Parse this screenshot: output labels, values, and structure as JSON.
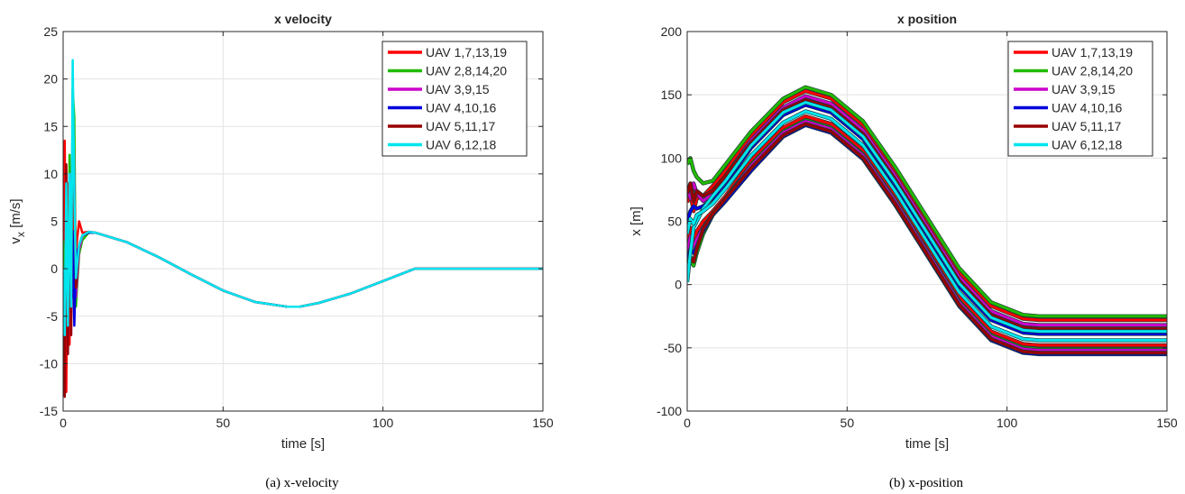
{
  "chart_data": [
    {
      "type": "line",
      "title": "x velocity",
      "xlabel": "time [s]",
      "ylabel": "v_x [m/s]",
      "xlim": [
        0,
        150
      ],
      "ylim": [
        -15,
        25
      ],
      "xticks": [
        0,
        50,
        100,
        150
      ],
      "yticks": [
        -15,
        -10,
        -5,
        0,
        5,
        10,
        15,
        20,
        25
      ],
      "grid": true,
      "legend_position": "top-right",
      "caption": "(a)  x-velocity",
      "series": [
        {
          "name": "UAV 1,7,13,19",
          "color": "#ff0000",
          "x": [
            0,
            0.5,
            1,
            1.5,
            2,
            2.5,
            3,
            3.5,
            4,
            5,
            6,
            8,
            10,
            20,
            30,
            40,
            50,
            60,
            70,
            74,
            80,
            90,
            100,
            110,
            120,
            130,
            140,
            150
          ],
          "y": [
            0,
            13.5,
            -13,
            9,
            -8,
            6,
            -3,
            8,
            2,
            5,
            3.8,
            3.9,
            3.8,
            2.8,
            1.2,
            -0.6,
            -2.3,
            -3.5,
            -4,
            -4,
            -3.6,
            -2.6,
            -1.3,
            0,
            0,
            0,
            0,
            0
          ]
        },
        {
          "name": "UAV 2,8,14,20",
          "color": "#22bb00",
          "x": [
            0,
            0.5,
            1,
            1.5,
            2,
            2.5,
            3,
            3.5,
            4,
            5,
            6,
            8,
            10,
            20,
            30,
            40,
            50,
            60,
            70,
            74,
            80,
            90,
            100,
            110,
            120,
            130,
            140,
            150
          ],
          "y": [
            3,
            -5,
            7,
            -8,
            12,
            -4,
            19,
            16,
            -4,
            1.5,
            3,
            3.8,
            3.8,
            2.8,
            1.2,
            -0.6,
            -2.3,
            -3.5,
            -4,
            -4,
            -3.6,
            -2.6,
            -1.3,
            0,
            0,
            0,
            0,
            0
          ]
        },
        {
          "name": "UAV 3,9,15",
          "color": "#cc00cc",
          "x": [
            0,
            0.5,
            1,
            1.5,
            2,
            2.5,
            3,
            3.5,
            4,
            5,
            6,
            8,
            10,
            20,
            30,
            40,
            50,
            60,
            70,
            74,
            80,
            90,
            100,
            110,
            120,
            130,
            140,
            150
          ],
          "y": [
            0,
            -12,
            8,
            -9,
            10,
            -7,
            18.5,
            10,
            -3,
            2,
            3.4,
            3.9,
            3.8,
            2.8,
            1.2,
            -0.6,
            -2.3,
            -3.5,
            -4,
            -4,
            -3.6,
            -2.6,
            -1.3,
            0,
            0,
            0,
            0,
            0
          ]
        },
        {
          "name": "UAV 4,10,16",
          "color": "#0000dd",
          "x": [
            0,
            0.5,
            1,
            1.5,
            2,
            2.5,
            3,
            3.5,
            4,
            5,
            6,
            8,
            10,
            20,
            30,
            40,
            50,
            60,
            70,
            74,
            80,
            90,
            100,
            110,
            120,
            130,
            140,
            150
          ],
          "y": [
            0,
            -4,
            5,
            -6,
            6,
            -5,
            4,
            -6,
            1,
            2.5,
            3.5,
            3.8,
            3.8,
            2.8,
            1.2,
            -0.6,
            -2.3,
            -3.5,
            -4,
            -4,
            -3.6,
            -2.6,
            -1.3,
            0,
            0,
            0,
            0,
            0
          ]
        },
        {
          "name": "UAV 5,11,17",
          "color": "#990000",
          "x": [
            0,
            0.5,
            1,
            1.5,
            2,
            2.5,
            3,
            3.5,
            4,
            5,
            6,
            8,
            10,
            20,
            30,
            40,
            50,
            60,
            70,
            74,
            80,
            90,
            100,
            110,
            120,
            130,
            140,
            150
          ],
          "y": [
            0,
            -13.5,
            11,
            -9,
            9,
            -7,
            17.5,
            8,
            -2,
            2.5,
            3.5,
            3.9,
            3.8,
            2.8,
            1.2,
            -0.6,
            -2.3,
            -3.5,
            -4,
            -4,
            -3.6,
            -2.6,
            -1.3,
            0,
            0,
            0,
            0,
            0
          ]
        },
        {
          "name": "UAV 6,12,18",
          "color": "#00e5ee",
          "x": [
            0,
            0.5,
            1,
            1.5,
            2,
            2.5,
            3,
            3.5,
            4,
            5,
            6,
            8,
            10,
            20,
            30,
            40,
            50,
            60,
            70,
            74,
            80,
            90,
            100,
            110,
            120,
            130,
            140,
            150
          ],
          "y": [
            0,
            -7,
            9,
            -6,
            10,
            -4,
            22,
            8,
            -1,
            2.5,
            3.5,
            3.9,
            3.8,
            2.8,
            1.2,
            -0.6,
            -2.3,
            -3.5,
            -4,
            -4,
            -3.6,
            -2.6,
            -1.3,
            0,
            0,
            0,
            0,
            0
          ]
        }
      ]
    },
    {
      "type": "line",
      "title": "x position",
      "xlabel": "time [s]",
      "ylabel": "x [m]",
      "xlim": [
        0,
        150
      ],
      "ylim": [
        -100,
        200
      ],
      "xticks": [
        0,
        50,
        100,
        150
      ],
      "yticks": [
        -100,
        -50,
        0,
        50,
        100,
        150,
        200
      ],
      "grid": true,
      "legend_position": "top-right",
      "caption": "(b)  x-position",
      "series": [
        {
          "name": "UAV 1,7,13,19",
          "color": "#ff0000",
          "x": [
            0,
            1,
            2,
            3,
            5,
            8,
            12,
            20,
            30,
            37,
            45,
            55,
            65,
            75,
            85,
            95,
            105,
            110,
            120,
            130,
            140,
            150
          ],
          "y": [
            65,
            72,
            58,
            68,
            70,
            78,
            90,
            118,
            144,
            153,
            147,
            126,
            90,
            50,
            10,
            -17,
            -27,
            -28,
            -28,
            -28,
            -28,
            -28
          ]
        },
        {
          "name": "UAV 1,7,13,19",
          "color": "#ff0000",
          "x": [
            0,
            1,
            2,
            3,
            5,
            8,
            12,
            20,
            30,
            37,
            45,
            55,
            65,
            75,
            85,
            95,
            105,
            110,
            120,
            130,
            140,
            150
          ],
          "y": [
            30,
            45,
            35,
            42,
            50,
            58,
            70,
            98,
            124,
            133,
            127,
            106,
            70,
            30,
            -10,
            -37,
            -47,
            -48,
            -48,
            -48,
            -48,
            -48
          ]
        },
        {
          "name": "UAV 2,8,14,20",
          "color": "#22bb00",
          "x": [
            0,
            1,
            2,
            3,
            5,
            8,
            12,
            20,
            30,
            37,
            45,
            55,
            65,
            75,
            85,
            95,
            105,
            110,
            120,
            130,
            140,
            150
          ],
          "y": [
            95,
            100,
            90,
            85,
            80,
            82,
            95,
            121,
            147,
            156,
            150,
            129,
            93,
            53,
            13,
            -14,
            -24,
            -25,
            -25,
            -25,
            -25,
            -25
          ]
        },
        {
          "name": "UAV 2,8,14,20",
          "color": "#22bb00",
          "x": [
            0,
            1,
            2,
            3,
            5,
            8,
            12,
            20,
            30,
            37,
            45,
            55,
            65,
            75,
            85,
            95,
            105,
            110,
            120,
            130,
            140,
            150
          ],
          "y": [
            10,
            20,
            15,
            25,
            40,
            55,
            68,
            95,
            121,
            130,
            124,
            103,
            67,
            27,
            -13,
            -40,
            -50,
            -51,
            -51,
            -51,
            -51,
            -51
          ]
        },
        {
          "name": "UAV 3,9,15",
          "color": "#cc00cc",
          "x": [
            0,
            1,
            2,
            3,
            5,
            8,
            12,
            20,
            30,
            37,
            45,
            55,
            65,
            75,
            85,
            95,
            105,
            110,
            120,
            130,
            140,
            150
          ],
          "y": [
            78,
            68,
            80,
            72,
            66,
            72,
            86,
            114,
            140,
            149,
            143,
            122,
            86,
            46,
            6,
            -21,
            -31,
            -32,
            -32,
            -32,
            -32,
            -32
          ]
        },
        {
          "name": "UAV 3,9,15",
          "color": "#cc00cc",
          "x": [
            0,
            1,
            2,
            3,
            5,
            8,
            12,
            20,
            30,
            37,
            45,
            55,
            65,
            75,
            85,
            95,
            105,
            110,
            120,
            130,
            140,
            150
          ],
          "y": [
            25,
            38,
            30,
            36,
            45,
            56,
            68,
            94,
            120,
            129,
            123,
            102,
            66,
            26,
            -14,
            -41,
            -51,
            -52,
            -52,
            -52,
            -52,
            -52
          ]
        },
        {
          "name": "UAV 4,10,16",
          "color": "#0000dd",
          "x": [
            0,
            1,
            2,
            3,
            5,
            8,
            12,
            20,
            30,
            37,
            45,
            55,
            65,
            75,
            85,
            95,
            105,
            110,
            120,
            130,
            140,
            150
          ],
          "y": [
            50,
            58,
            62,
            60,
            62,
            68,
            80,
            108,
            134,
            142,
            136,
            115,
            79,
            39,
            -1,
            -28,
            -38,
            -39,
            -39,
            -39,
            -39,
            -39
          ]
        },
        {
          "name": "UAV 4,10,16",
          "color": "#0000dd",
          "x": [
            0,
            1,
            2,
            3,
            5,
            8,
            12,
            20,
            30,
            37,
            45,
            55,
            65,
            75,
            85,
            95,
            105,
            110,
            120,
            130,
            140,
            150
          ],
          "y": [
            18,
            28,
            25,
            30,
            42,
            55,
            66,
            90,
            117,
            126,
            120,
            99,
            63,
            23,
            -17,
            -44,
            -54,
            -55,
            -55,
            -55,
            -55,
            -55
          ]
        },
        {
          "name": "UAV 5,11,17",
          "color": "#990000",
          "x": [
            0,
            1,
            2,
            3,
            5,
            8,
            12,
            20,
            30,
            37,
            45,
            55,
            65,
            75,
            85,
            95,
            105,
            110,
            120,
            130,
            140,
            150
          ],
          "y": [
            72,
            80,
            66,
            74,
            70,
            74,
            86,
            112,
            138,
            146,
            140,
            119,
            83,
            43,
            3,
            -24,
            -34,
            -35,
            -35,
            -35,
            -35,
            -35
          ]
        },
        {
          "name": "UAV 5,11,17",
          "color": "#990000",
          "x": [
            0,
            1,
            2,
            3,
            5,
            8,
            12,
            20,
            30,
            37,
            45,
            55,
            65,
            75,
            85,
            95,
            105,
            110,
            120,
            130,
            140,
            150
          ],
          "y": [
            15,
            22,
            18,
            28,
            44,
            56,
            68,
            92,
            118,
            127,
            121,
            100,
            64,
            24,
            -16,
            -43,
            -53,
            -54,
            -54,
            -54,
            -54,
            -54
          ]
        },
        {
          "name": "UAV 6,12,18",
          "color": "#00e5ee",
          "x": [
            0,
            1,
            2,
            3,
            5,
            8,
            12,
            20,
            30,
            37,
            45,
            55,
            65,
            75,
            85,
            95,
            105,
            110,
            120,
            130,
            140,
            150
          ],
          "y": [
            2,
            25,
            45,
            50,
            60,
            70,
            82,
            110,
            136,
            144,
            138,
            117,
            81,
            41,
            1,
            -26,
            -36,
            -37,
            -37,
            -37,
            -37,
            -37
          ]
        },
        {
          "name": "UAV 6,12,18",
          "color": "#00e5ee",
          "x": [
            0,
            1,
            2,
            3,
            5,
            8,
            12,
            20,
            30,
            37,
            45,
            55,
            65,
            75,
            85,
            95,
            105,
            110,
            120,
            130,
            140,
            150
          ],
          "y": [
            40,
            52,
            48,
            55,
            58,
            64,
            76,
            102,
            128,
            137,
            131,
            110,
            74,
            34,
            -6,
            -33,
            -43,
            -44,
            -44,
            -44,
            -44,
            -44
          ]
        }
      ]
    }
  ]
}
